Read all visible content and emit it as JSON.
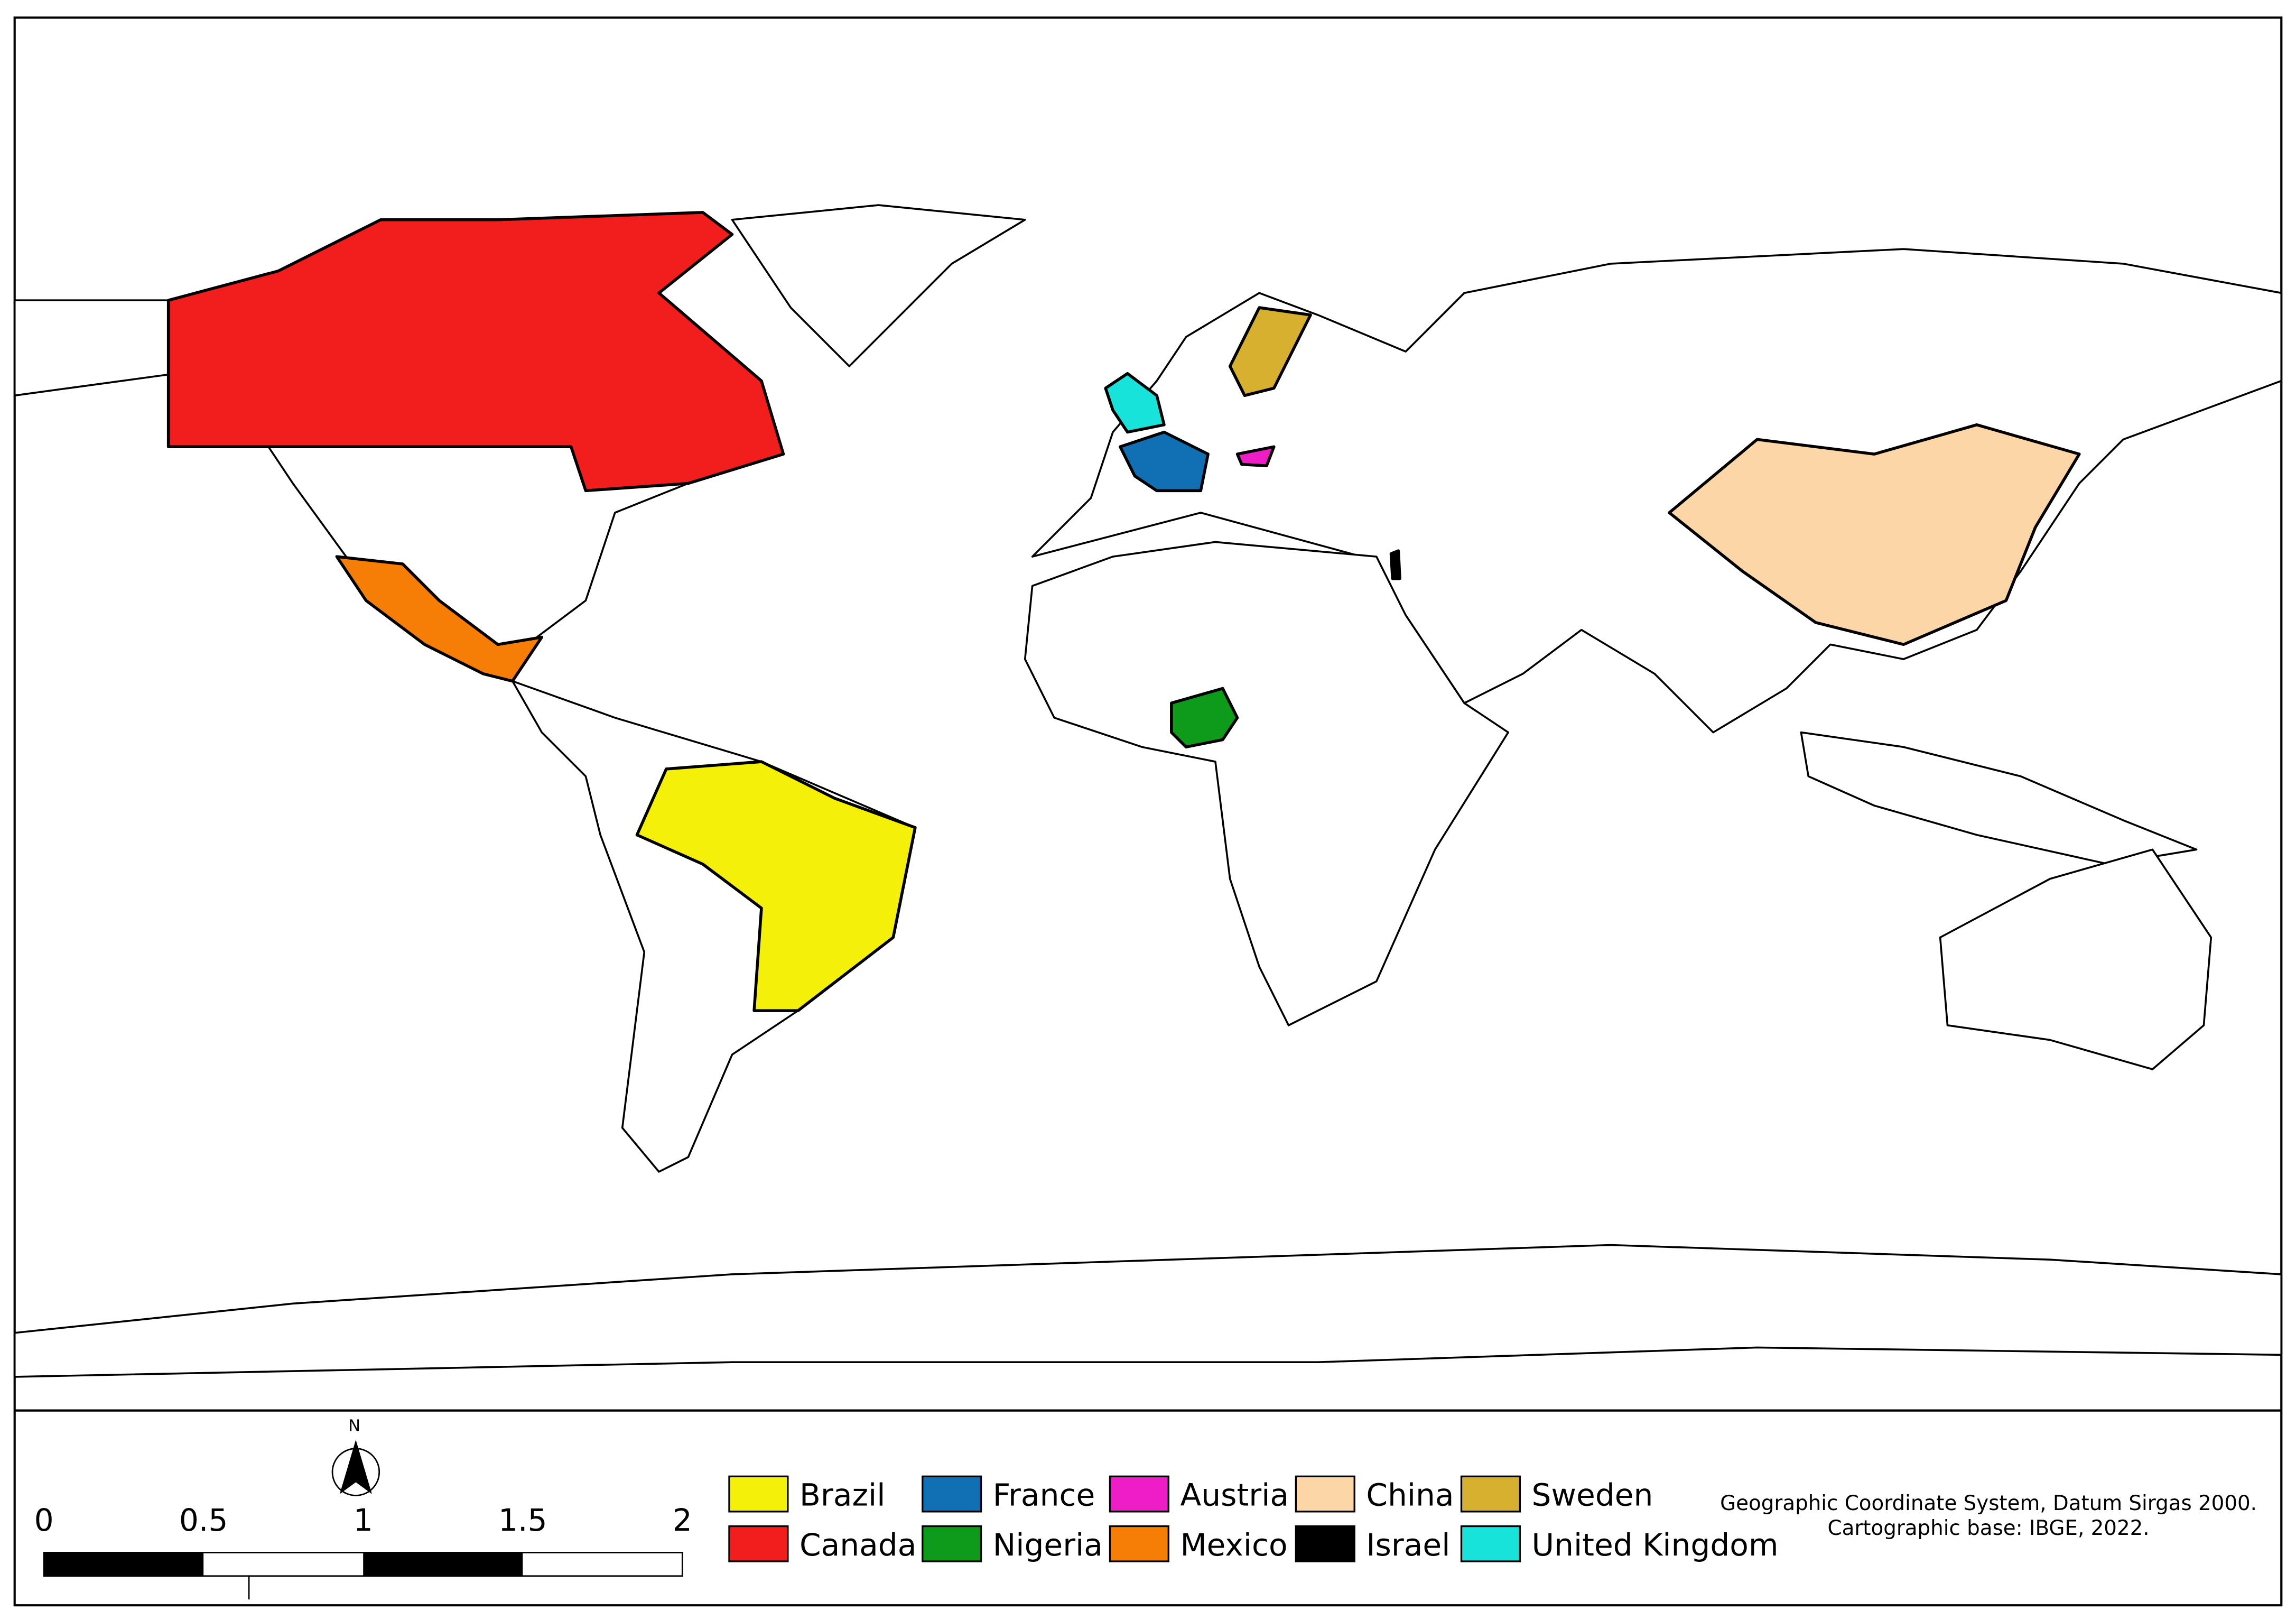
{
  "legend": [
    {
      "label": "Brazil",
      "color": "#f5f00a"
    },
    {
      "label": "Canada",
      "color": "#f21d1d"
    },
    {
      "label": "France",
      "color": "#1170b4"
    },
    {
      "label": "Nigeria",
      "color": "#0f9b1a"
    },
    {
      "label": "Austria",
      "color": "#ef1dc6"
    },
    {
      "label": "Mexico",
      "color": "#f77e06"
    },
    {
      "label": "China",
      "color": "#fcd6a6"
    },
    {
      "label": "Israel",
      "color": "#000000"
    },
    {
      "label": "Sweden",
      "color": "#d8b02f"
    },
    {
      "label": "United Kingdom",
      "color": "#18e3da"
    }
  ],
  "scale_bar": {
    "labels": [
      "0",
      "0.5",
      "1",
      "1.5",
      "2"
    ]
  },
  "north_arrow": "N",
  "credits": [
    "Geographic Coordinate System, Datum Sirgas 2000.",
    "Cartographic base: IBGE, 2022."
  ]
}
